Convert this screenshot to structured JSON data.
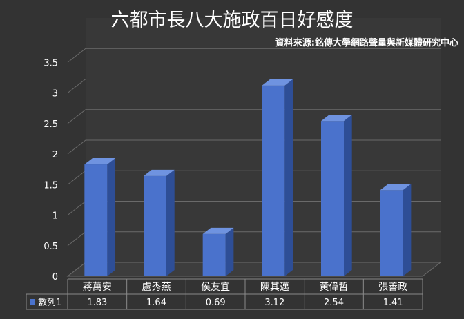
{
  "chart_data": {
    "type": "bar",
    "title": "六都市長八大施政百日好感度",
    "subtitle": "資料來源:銘傳大學網路聲量與新媒體研究中心",
    "categories": [
      "蔣萬安",
      "盧秀燕",
      "侯友宜",
      "陳其邁",
      "黃偉哲",
      "張善政"
    ],
    "series": [
      {
        "name": "數列1",
        "values": [
          1.83,
          1.64,
          0.69,
          3.12,
          2.54,
          1.41
        ]
      }
    ],
    "value_labels": [
      "1.83",
      "1.64",
      "0.69",
      "3.12",
      "2.54",
      "1.41"
    ],
    "y_ticks": [
      "0",
      "0.5",
      "1",
      "1.5",
      "2",
      "2.5",
      "3",
      "3.5"
    ],
    "ylim": [
      0,
      4
    ],
    "grid": true,
    "legend": "data-table",
    "colors": {
      "background": "#333333",
      "bar_front": "#4a72cc",
      "bar_side": "#2e4e96",
      "bar_top": "#6f93e0",
      "grid": "#6a6a6a",
      "text": "#ffffff"
    }
  }
}
